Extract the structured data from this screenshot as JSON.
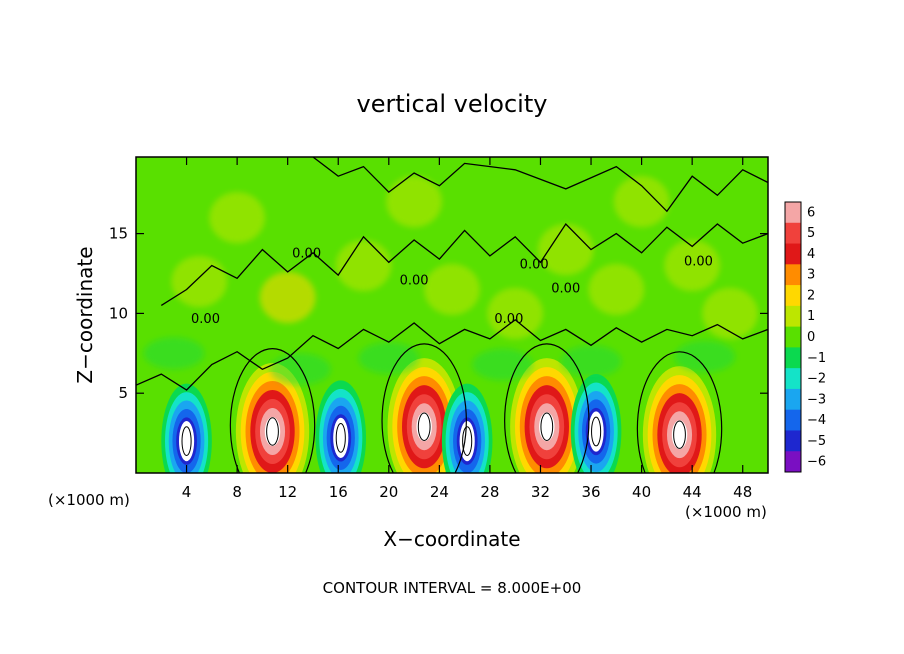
{
  "chart_data": {
    "type": "heatmap",
    "title": "vertical velocity",
    "xlabel": "X−coordinate",
    "ylabel": "Z−coordinate",
    "x_unit_label": "(×1000 m)",
    "z_unit_label": "(×1000 m)",
    "xlim": [
      0,
      50
    ],
    "ylim": [
      0,
      19.8
    ],
    "x_ticks": [
      4,
      8,
      12,
      16,
      20,
      24,
      28,
      32,
      36,
      40,
      44,
      48
    ],
    "x_tick_labels": [
      "4",
      "8",
      "12",
      "16",
      "20",
      "24",
      "28",
      "32",
      "36",
      "40",
      "44",
      "48"
    ],
    "y_ticks": [
      5,
      10,
      15
    ],
    "y_tick_labels": [
      "5",
      "10",
      "15"
    ],
    "colorbar": {
      "levels": [
        6,
        5,
        4,
        3,
        2,
        1,
        0,
        -1,
        -2,
        -3,
        -4,
        -5,
        -6
      ],
      "labels": [
        "6",
        "5",
        "4",
        "3",
        "2",
        "1",
        "0",
        "−1",
        "−2",
        "−3",
        "−4",
        "−5",
        "−6"
      ],
      "colors": [
        "#f4a6a6",
        "#f0413c",
        "#e01818",
        "#ff8c00",
        "#ffd800",
        "#bde600",
        "#59e000",
        "#0bd94f",
        "#14e3c8",
        "#1aa6f0",
        "#1466ec",
        "#1e27cf",
        "#7a0fc2"
      ]
    },
    "updrafts": [
      {
        "x": 10.8,
        "z": 2.6,
        "peak": 8.5
      },
      {
        "x": 22.8,
        "z": 2.9,
        "peak": 8.5
      },
      {
        "x": 32.5,
        "z": 2.9,
        "peak": 8.0
      },
      {
        "x": 43.0,
        "z": 2.4,
        "peak": 8.0
      }
    ],
    "downdrafts": [
      {
        "x": 4.0,
        "z": 2.0,
        "peak": -6.5
      },
      {
        "x": 16.2,
        "z": 2.2,
        "peak": -7.0
      },
      {
        "x": 26.2,
        "z": 2.0,
        "peak": -7.0
      },
      {
        "x": 36.4,
        "z": 2.6,
        "peak": -7.0
      }
    ],
    "contour_labels": [
      "0.00",
      "0.00",
      "0.00",
      "0.00",
      "0.00",
      "0.00",
      "0.00"
    ],
    "footer": "CONTOUR INTERVAL = 8.000E+00"
  }
}
